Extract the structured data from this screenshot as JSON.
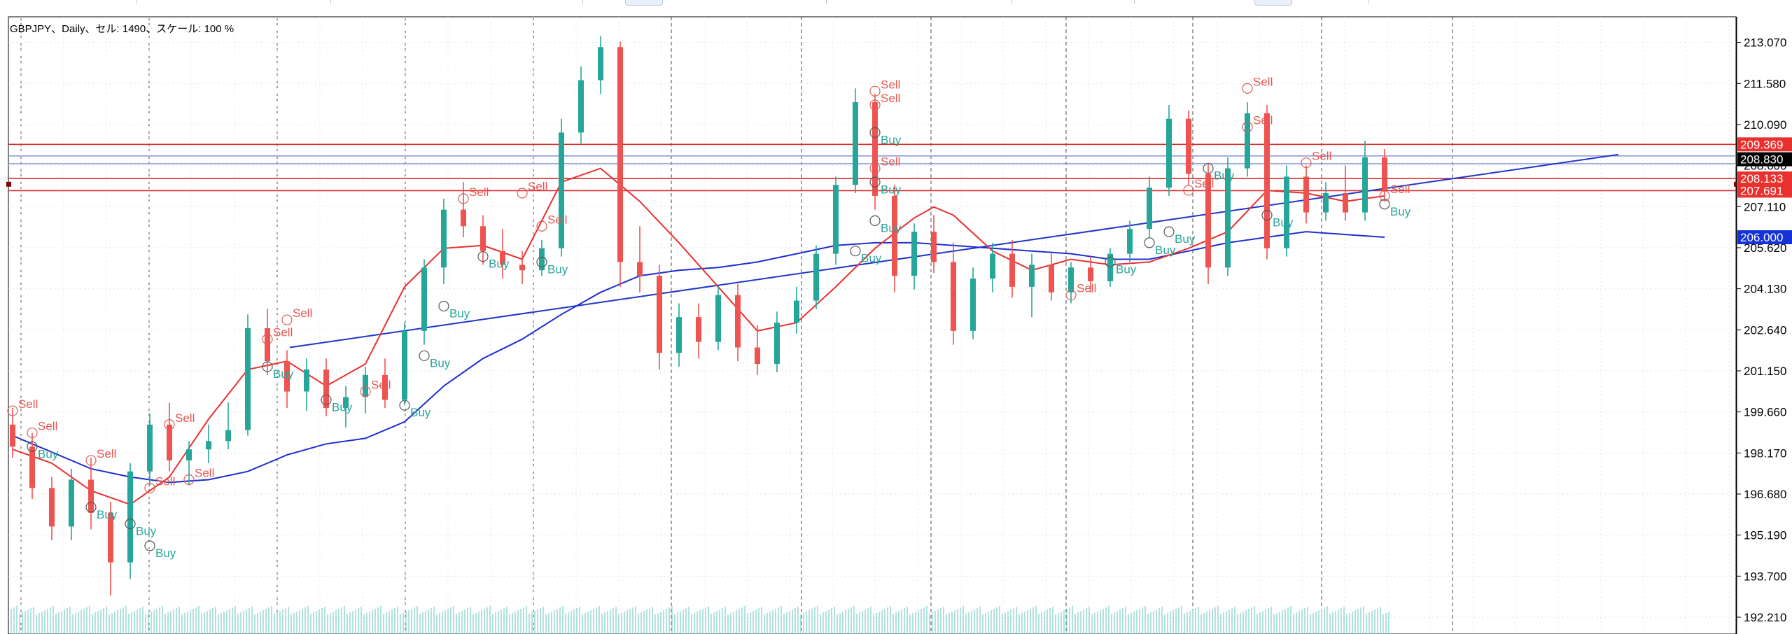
{
  "window": {
    "info_line": "GBPJPY、Daily、セル: 1490、スケール: 100 %"
  },
  "chart_data": {
    "type": "candlestick",
    "symbol": "GBPJPY",
    "timeframe": "Daily",
    "bars_count": 1490,
    "scale": "100 %",
    "grid": true,
    "y_axis": {
      "ylim": [
        191.6,
        214.0
      ],
      "ticks": [
        "213.070",
        "211.580",
        "210.090",
        "208.600",
        "207.110",
        "205.620",
        "204.130",
        "202.640",
        "201.150",
        "199.660",
        "198.170",
        "196.680",
        "195.190",
        "193.700",
        "192.210"
      ]
    },
    "price_labels": [
      {
        "value": "209.369",
        "color": "#e8312f"
      },
      {
        "value": "208.830",
        "color": "#000000"
      },
      {
        "value": "208.133",
        "color": "#e8312f"
      },
      {
        "value": "207.691",
        "color": "#e8312f"
      },
      {
        "value": "206.000",
        "color": "#1432d6"
      }
    ],
    "horizontal_lines": [
      {
        "value": 209.369,
        "color": "#d92e2e"
      },
      {
        "value": 208.95,
        "color": "#8a9cd6"
      },
      {
        "value": 208.67,
        "color": "#8a9cd6"
      },
      {
        "value": 208.133,
        "color": "#d92e2e"
      },
      {
        "value": 207.691,
        "color": "#d92e2e"
      }
    ],
    "trendline": {
      "from": [
        12,
        202.0
      ],
      "to": [
        64,
        209.0
      ],
      "color": "#1f35c9"
    },
    "ma_fast": [
      [
        0,
        198.3
      ],
      [
        2,
        197.8
      ],
      [
        4,
        196.8
      ],
      [
        6,
        196.3
      ],
      [
        8,
        197.3
      ],
      [
        10,
        199.4
      ],
      [
        12,
        201.2
      ],
      [
        14,
        201.5
      ],
      [
        16,
        200.6
      ],
      [
        18,
        201.4
      ],
      [
        20,
        204.2
      ],
      [
        22,
        205.6
      ],
      [
        24,
        205.7
      ],
      [
        26,
        205.2
      ],
      [
        28,
        208.0
      ],
      [
        30,
        208.5
      ],
      [
        32,
        207.3
      ],
      [
        34,
        205.8
      ],
      [
        36,
        204.2
      ],
      [
        38,
        202.6
      ],
      [
        40,
        202.9
      ],
      [
        42,
        204.2
      ],
      [
        44,
        205.6
      ],
      [
        46,
        206.7
      ],
      [
        47,
        207.1
      ],
      [
        48,
        206.8
      ],
      [
        50,
        205.5
      ],
      [
        52,
        204.8
      ],
      [
        54,
        205.2
      ],
      [
        56,
        205.0
      ],
      [
        58,
        205.1
      ],
      [
        60,
        205.6
      ],
      [
        62,
        206.2
      ],
      [
        64,
        207.7
      ],
      [
        66,
        207.6
      ],
      [
        68,
        207.3
      ],
      [
        70,
        207.5
      ]
    ],
    "ma_slow": [
      [
        0,
        198.8
      ],
      [
        2,
        198.2
      ],
      [
        4,
        197.6
      ],
      [
        6,
        197.3
      ],
      [
        8,
        197.1
      ],
      [
        10,
        197.2
      ],
      [
        12,
        197.5
      ],
      [
        14,
        198.1
      ],
      [
        16,
        198.5
      ],
      [
        18,
        198.7
      ],
      [
        20,
        199.3
      ],
      [
        22,
        200.6
      ],
      [
        24,
        201.6
      ],
      [
        26,
        202.3
      ],
      [
        28,
        203.2
      ],
      [
        30,
        204.0
      ],
      [
        32,
        204.6
      ],
      [
        34,
        204.8
      ],
      [
        36,
        204.9
      ],
      [
        38,
        205.1
      ],
      [
        40,
        205.4
      ],
      [
        42,
        205.7
      ],
      [
        44,
        205.8
      ],
      [
        46,
        205.8
      ],
      [
        48,
        205.7
      ],
      [
        50,
        205.6
      ],
      [
        52,
        205.5
      ],
      [
        54,
        205.4
      ],
      [
        56,
        205.2
      ],
      [
        58,
        205.2
      ],
      [
        60,
        205.5
      ],
      [
        62,
        205.8
      ],
      [
        64,
        206.0
      ],
      [
        66,
        206.2
      ],
      [
        68,
        206.1
      ],
      [
        70,
        206.0
      ]
    ],
    "candles": [
      {
        "x": 0,
        "o": 199.2,
        "h": 199.8,
        "l": 198.0,
        "c": 198.4
      },
      {
        "x": 1,
        "o": 198.4,
        "h": 198.9,
        "l": 196.5,
        "c": 196.9
      },
      {
        "x": 2,
        "o": 196.9,
        "h": 197.3,
        "l": 195.0,
        "c": 195.5
      },
      {
        "x": 3,
        "o": 195.5,
        "h": 197.6,
        "l": 195.0,
        "c": 197.2
      },
      {
        "x": 4,
        "o": 197.2,
        "h": 198.0,
        "l": 195.4,
        "c": 196.0
      },
      {
        "x": 5,
        "o": 196.0,
        "h": 196.4,
        "l": 193.0,
        "c": 194.2
      },
      {
        "x": 6,
        "o": 194.2,
        "h": 197.8,
        "l": 193.6,
        "c": 197.5
      },
      {
        "x": 7,
        "o": 197.5,
        "h": 199.6,
        "l": 197.0,
        "c": 199.2
      },
      {
        "x": 8,
        "o": 199.2,
        "h": 200.0,
        "l": 197.5,
        "c": 197.9
      },
      {
        "x": 9,
        "o": 197.9,
        "h": 198.6,
        "l": 197.0,
        "c": 198.3
      },
      {
        "x": 10,
        "o": 198.3,
        "h": 199.2,
        "l": 197.8,
        "c": 198.6
      },
      {
        "x": 11,
        "o": 198.6,
        "h": 200.0,
        "l": 198.3,
        "c": 199.0
      },
      {
        "x": 12,
        "o": 199.0,
        "h": 203.2,
        "l": 198.8,
        "c": 202.7
      },
      {
        "x": 13,
        "o": 202.7,
        "h": 203.4,
        "l": 201.0,
        "c": 201.5
      },
      {
        "x": 14,
        "o": 201.5,
        "h": 201.9,
        "l": 199.8,
        "c": 200.4
      },
      {
        "x": 15,
        "o": 200.4,
        "h": 201.6,
        "l": 199.7,
        "c": 201.2
      },
      {
        "x": 16,
        "o": 201.2,
        "h": 201.6,
        "l": 199.5,
        "c": 199.8
      },
      {
        "x": 17,
        "o": 199.8,
        "h": 200.6,
        "l": 199.1,
        "c": 200.2
      },
      {
        "x": 18,
        "o": 200.2,
        "h": 201.3,
        "l": 199.6,
        "c": 201.0
      },
      {
        "x": 19,
        "o": 201.0,
        "h": 201.6,
        "l": 199.8,
        "c": 200.1
      },
      {
        "x": 20,
        "o": 200.1,
        "h": 202.9,
        "l": 199.9,
        "c": 202.6
      },
      {
        "x": 21,
        "o": 202.6,
        "h": 205.2,
        "l": 202.1,
        "c": 204.9
      },
      {
        "x": 22,
        "o": 204.9,
        "h": 207.4,
        "l": 204.3,
        "c": 207.0
      },
      {
        "x": 23,
        "o": 207.0,
        "h": 208.0,
        "l": 206.0,
        "c": 206.4
      },
      {
        "x": 24,
        "o": 206.4,
        "h": 206.8,
        "l": 205.0,
        "c": 205.5
      },
      {
        "x": 25,
        "o": 205.5,
        "h": 206.3,
        "l": 204.5,
        "c": 205.0
      },
      {
        "x": 26,
        "o": 205.0,
        "h": 205.5,
        "l": 204.3,
        "c": 204.8
      },
      {
        "x": 27,
        "o": 204.8,
        "h": 205.9,
        "l": 204.6,
        "c": 205.6
      },
      {
        "x": 28,
        "o": 205.6,
        "h": 210.3,
        "l": 205.3,
        "c": 209.8
      },
      {
        "x": 29,
        "o": 209.8,
        "h": 212.2,
        "l": 209.4,
        "c": 211.7
      },
      {
        "x": 30,
        "o": 211.7,
        "h": 213.3,
        "l": 211.2,
        "c": 212.9
      },
      {
        "x": 31,
        "o": 212.9,
        "h": 213.1,
        "l": 204.2,
        "c": 205.1
      },
      {
        "x": 32,
        "o": 205.1,
        "h": 206.4,
        "l": 204.0,
        "c": 204.6
      },
      {
        "x": 33,
        "o": 204.6,
        "h": 205.0,
        "l": 201.2,
        "c": 201.8
      },
      {
        "x": 34,
        "o": 201.8,
        "h": 203.6,
        "l": 201.3,
        "c": 203.1
      },
      {
        "x": 35,
        "o": 203.1,
        "h": 203.6,
        "l": 201.6,
        "c": 202.2
      },
      {
        "x": 36,
        "o": 202.2,
        "h": 204.2,
        "l": 201.9,
        "c": 203.9
      },
      {
        "x": 37,
        "o": 203.9,
        "h": 204.3,
        "l": 201.5,
        "c": 202.0
      },
      {
        "x": 38,
        "o": 202.0,
        "h": 202.8,
        "l": 201.0,
        "c": 201.4
      },
      {
        "x": 39,
        "o": 201.4,
        "h": 203.3,
        "l": 201.1,
        "c": 202.9
      },
      {
        "x": 40,
        "o": 202.9,
        "h": 204.2,
        "l": 202.5,
        "c": 203.7
      },
      {
        "x": 41,
        "o": 203.7,
        "h": 205.7,
        "l": 203.4,
        "c": 205.4
      },
      {
        "x": 42,
        "o": 205.4,
        "h": 208.2,
        "l": 205.0,
        "c": 207.9
      },
      {
        "x": 43,
        "o": 207.9,
        "h": 211.4,
        "l": 207.6,
        "c": 210.9
      },
      {
        "x": 44,
        "o": 210.9,
        "h": 211.2,
        "l": 207.0,
        "c": 207.5
      },
      {
        "x": 45,
        "o": 207.5,
        "h": 207.9,
        "l": 204.0,
        "c": 204.6
      },
      {
        "x": 46,
        "o": 204.6,
        "h": 206.5,
        "l": 204.1,
        "c": 206.2
      },
      {
        "x": 47,
        "o": 206.2,
        "h": 206.8,
        "l": 204.7,
        "c": 205.1
      },
      {
        "x": 48,
        "o": 205.1,
        "h": 205.8,
        "l": 202.1,
        "c": 202.6
      },
      {
        "x": 49,
        "o": 202.6,
        "h": 204.9,
        "l": 202.3,
        "c": 204.5
      },
      {
        "x": 50,
        "o": 204.5,
        "h": 205.8,
        "l": 204.0,
        "c": 205.4
      },
      {
        "x": 51,
        "o": 205.4,
        "h": 205.9,
        "l": 203.8,
        "c": 204.2
      },
      {
        "x": 52,
        "o": 204.2,
        "h": 205.4,
        "l": 203.1,
        "c": 205.0
      },
      {
        "x": 53,
        "o": 205.0,
        "h": 205.4,
        "l": 203.7,
        "c": 204.0
      },
      {
        "x": 54,
        "o": 204.0,
        "h": 205.1,
        "l": 203.6,
        "c": 204.9
      },
      {
        "x": 55,
        "o": 204.9,
        "h": 205.3,
        "l": 204.0,
        "c": 204.4
      },
      {
        "x": 56,
        "o": 204.4,
        "h": 205.6,
        "l": 204.2,
        "c": 205.4
      },
      {
        "x": 57,
        "o": 205.4,
        "h": 206.6,
        "l": 205.1,
        "c": 206.3
      },
      {
        "x": 58,
        "o": 206.3,
        "h": 208.2,
        "l": 206.0,
        "c": 207.8
      },
      {
        "x": 59,
        "o": 207.8,
        "h": 210.8,
        "l": 207.5,
        "c": 210.3
      },
      {
        "x": 60,
        "o": 210.3,
        "h": 210.6,
        "l": 207.9,
        "c": 208.3
      },
      {
        "x": 61,
        "o": 208.3,
        "h": 208.7,
        "l": 204.3,
        "c": 204.9
      },
      {
        "x": 62,
        "o": 204.9,
        "h": 208.9,
        "l": 204.6,
        "c": 208.5
      },
      {
        "x": 63,
        "o": 208.5,
        "h": 210.9,
        "l": 208.2,
        "c": 210.5
      },
      {
        "x": 64,
        "o": 210.5,
        "h": 210.8,
        "l": 205.2,
        "c": 205.6
      },
      {
        "x": 65,
        "o": 205.6,
        "h": 208.6,
        "l": 205.3,
        "c": 208.2
      },
      {
        "x": 66,
        "o": 208.2,
        "h": 208.6,
        "l": 206.5,
        "c": 206.9
      },
      {
        "x": 67,
        "o": 206.9,
        "h": 208.0,
        "l": 206.6,
        "c": 207.6
      },
      {
        "x": 68,
        "o": 207.6,
        "h": 208.6,
        "l": 206.6,
        "c": 206.9
      },
      {
        "x": 69,
        "o": 206.9,
        "h": 209.5,
        "l": 206.6,
        "c": 208.9
      },
      {
        "x": 70,
        "o": 208.9,
        "h": 209.2,
        "l": 207.3,
        "c": 207.7
      }
    ],
    "signals": [
      {
        "x": 0,
        "type": "Sell",
        "p": 199.7
      },
      {
        "x": 1,
        "type": "Sell",
        "p": 198.9
      },
      {
        "x": 1,
        "type": "Buy",
        "p": 198.4
      },
      {
        "x": 4,
        "type": "Sell",
        "p": 197.9
      },
      {
        "x": 4,
        "type": "Buy",
        "p": 196.2
      },
      {
        "x": 6,
        "type": "Buy",
        "p": 195.6
      },
      {
        "x": 7,
        "type": "Buy",
        "p": 194.8
      },
      {
        "x": 8,
        "type": "Sell",
        "p": 199.2
      },
      {
        "x": 9,
        "type": "Sell",
        "p": 197.2
      },
      {
        "x": 7,
        "type": "Sell",
        "p": 196.9
      },
      {
        "x": 13,
        "type": "Sell",
        "p": 202.3
      },
      {
        "x": 14,
        "type": "Sell",
        "p": 203.0
      },
      {
        "x": 13,
        "type": "Buy",
        "p": 201.3
      },
      {
        "x": 16,
        "type": "Buy",
        "p": 200.1
      },
      {
        "x": 18,
        "type": "Sell",
        "p": 200.4
      },
      {
        "x": 20,
        "type": "Buy",
        "p": 199.9
      },
      {
        "x": 21,
        "type": "Buy",
        "p": 201.7
      },
      {
        "x": 22,
        "type": "Buy",
        "p": 203.5
      },
      {
        "x": 23,
        "type": "Sell",
        "p": 207.4
      },
      {
        "x": 24,
        "type": "Buy",
        "p": 205.3
      },
      {
        "x": 26,
        "type": "Sell",
        "p": 207.6
      },
      {
        "x": 27,
        "type": "Sell",
        "p": 206.4
      },
      {
        "x": 27,
        "type": "Buy",
        "p": 205.1
      },
      {
        "x": 44,
        "type": "Sell",
        "p": 211.3
      },
      {
        "x": 44,
        "type": "Sell",
        "p": 210.8
      },
      {
        "x": 44,
        "type": "Buy",
        "p": 209.8
      },
      {
        "x": 44,
        "type": "Buy",
        "p": 208.0
      },
      {
        "x": 44,
        "type": "Sell",
        "p": 208.5
      },
      {
        "x": 44,
        "type": "Buy",
        "p": 206.6
      },
      {
        "x": 43,
        "type": "Buy",
        "p": 205.5
      },
      {
        "x": 54,
        "type": "Sell",
        "p": 203.9
      },
      {
        "x": 56,
        "type": "Buy",
        "p": 205.1
      },
      {
        "x": 58,
        "type": "Buy",
        "p": 205.8
      },
      {
        "x": 59,
        "type": "Buy",
        "p": 206.2
      },
      {
        "x": 60,
        "type": "Sell",
        "p": 207.7
      },
      {
        "x": 61,
        "type": "Buy",
        "p": 208.5
      },
      {
        "x": 63,
        "type": "Sell",
        "p": 211.4
      },
      {
        "x": 63,
        "type": "Sell",
        "p": 210.0
      },
      {
        "x": 64,
        "type": "Buy",
        "p": 206.8
      },
      {
        "x": 66,
        "type": "Sell",
        "p": 208.7
      },
      {
        "x": 70,
        "type": "Sell",
        "p": 207.5
      },
      {
        "x": 70,
        "type": "Buy",
        "p": 207.2
      }
    ]
  }
}
